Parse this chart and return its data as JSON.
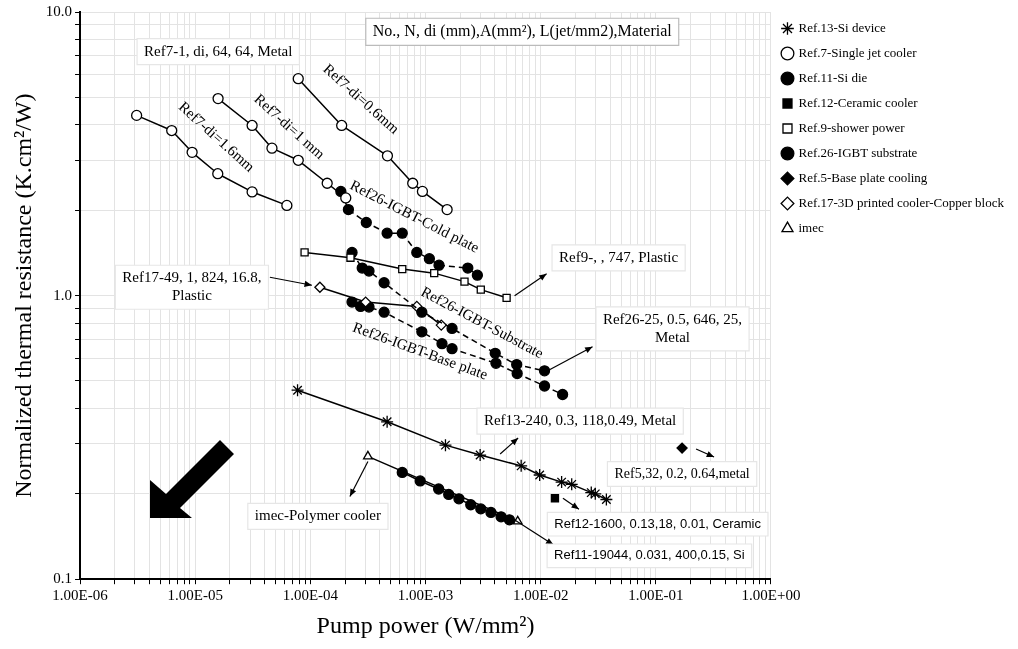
{
  "chart_data": {
    "type": "line",
    "xlabel": "Pump power (W/mm²)",
    "ylabel": "Normalized thermal resistance (K.cm²/W)",
    "log": "xy",
    "grid": true,
    "legend": "right",
    "xlim": [
      1e-06,
      1
    ],
    "ylim": [
      0.1,
      10
    ],
    "xticks": [
      {
        "value": 1e-06,
        "label": "1.00E-06"
      },
      {
        "value": 2e-06,
        "label": null
      },
      {
        "value": 3e-06,
        "label": null
      },
      {
        "value": 4e-06,
        "label": null
      },
      {
        "value": 5e-06,
        "label": null
      },
      {
        "value": 6e-06,
        "label": null
      },
      {
        "value": 7e-06,
        "label": null
      },
      {
        "value": 8e-06,
        "label": null
      },
      {
        "value": 9e-06,
        "label": null
      },
      {
        "value": 1e-05,
        "label": "1.00E-05"
      },
      {
        "value": 2e-05,
        "label": null
      },
      {
        "value": 3e-05,
        "label": null
      },
      {
        "value": 4e-05,
        "label": null
      },
      {
        "value": 5e-05,
        "label": null
      },
      {
        "value": 6e-05,
        "label": null
      },
      {
        "value": 7e-05,
        "label": null
      },
      {
        "value": 8e-05,
        "label": null
      },
      {
        "value": 9e-05,
        "label": null
      },
      {
        "value": 0.0001,
        "label": "1.00E-04"
      },
      {
        "value": 0.0002,
        "label": null
      },
      {
        "value": 0.0003,
        "label": null
      },
      {
        "value": 0.0004,
        "label": null
      },
      {
        "value": 0.0005,
        "label": null
      },
      {
        "value": 0.0006,
        "label": null
      },
      {
        "value": 0.0007,
        "label": null
      },
      {
        "value": 0.0008,
        "label": null
      },
      {
        "value": 0.0009,
        "label": null
      },
      {
        "value": 0.001,
        "label": "1.00E-03"
      },
      {
        "value": 0.002,
        "label": null
      },
      {
        "value": 0.003,
        "label": null
      },
      {
        "value": 0.004,
        "label": null
      },
      {
        "value": 0.005,
        "label": null
      },
      {
        "value": 0.006,
        "label": null
      },
      {
        "value": 0.007,
        "label": null
      },
      {
        "value": 0.008,
        "label": null
      },
      {
        "value": 0.009,
        "label": null
      },
      {
        "value": 0.01,
        "label": "1.00E-02"
      },
      {
        "value": 0.02,
        "label": null
      },
      {
        "value": 0.03,
        "label": null
      },
      {
        "value": 0.04,
        "label": null
      },
      {
        "value": 0.05,
        "label": null
      },
      {
        "value": 0.06,
        "label": null
      },
      {
        "value": 0.07,
        "label": null
      },
      {
        "value": 0.08,
        "label": null
      },
      {
        "value": 0.09,
        "label": null
      },
      {
        "value": 0.1,
        "label": "1.00E-01"
      },
      {
        "value": 0.2,
        "label": null
      },
      {
        "value": 0.3,
        "label": null
      },
      {
        "value": 0.4,
        "label": null
      },
      {
        "value": 0.5,
        "label": null
      },
      {
        "value": 0.6,
        "label": null
      },
      {
        "value": 0.7,
        "label": null
      },
      {
        "value": 0.8,
        "label": null
      },
      {
        "value": 0.9,
        "label": null
      },
      {
        "value": 1,
        "label": "1.00E+00"
      }
    ],
    "yticks": [
      {
        "value": 0.1,
        "label": "0.1"
      },
      {
        "value": 0.2,
        "label": null
      },
      {
        "value": 0.3,
        "label": null
      },
      {
        "value": 0.4,
        "label": null
      },
      {
        "value": 0.5,
        "label": null
      },
      {
        "value": 0.6,
        "label": null
      },
      {
        "value": 0.7,
        "label": null
      },
      {
        "value": 0.8,
        "label": null
      },
      {
        "value": 0.9,
        "label": null
      },
      {
        "value": 1,
        "label": "1.0"
      },
      {
        "value": 2,
        "label": null
      },
      {
        "value": 3,
        "label": null
      },
      {
        "value": 4,
        "label": null
      },
      {
        "value": 5,
        "label": null
      },
      {
        "value": 6,
        "label": null
      },
      {
        "value": 7,
        "label": null
      },
      {
        "value": 8,
        "label": null
      },
      {
        "value": 9,
        "label": null
      },
      {
        "value": 10,
        "label": "10.0"
      }
    ],
    "series": [
      {
        "name": "Ref.13-Si device",
        "type": "line",
        "marker": "cross",
        "line_style": "solid",
        "color": "#000000",
        "x": [
          7.74e-05,
          0.000464,
          0.00149,
          0.00298,
          0.00677,
          0.0098,
          0.0152,
          0.0186,
          0.0275,
          0.0298,
          0.0372
        ],
        "values": [
          0.464,
          0.359,
          0.297,
          0.274,
          0.251,
          0.233,
          0.22,
          0.216,
          0.202,
          0.2,
          0.191
        ]
      },
      {
        "name": "Ref.7-Single jet cooler",
        "type": "line",
        "marker": "circle",
        "line_style": "solid",
        "color": "#ffffff",
        "x": [
          3.1e-06,
          6.25e-06,
          9.4e-06,
          1.57e-05,
          3.12e-05,
          6.25e-05
        ],
        "values": [
          4.32,
          3.82,
          3.2,
          2.69,
          2.32,
          2.08
        ]
      },
      {
        "name": "Ref.11-Si die",
        "type": "line",
        "marker": "circle",
        "line_style": "solid",
        "color": "#000000",
        "x": [
          0.000628,
          0.000899,
          0.0013,
          0.00159,
          0.00195,
          0.00247,
          0.00302,
          0.0037,
          0.00453,
          0.00535
        ],
        "values": [
          0.238,
          0.222,
          0.208,
          0.199,
          0.192,
          0.183,
          0.177,
          0.172,
          0.166,
          0.162
        ]
      },
      {
        "name": "Ref.12-Ceramic cooler",
        "type": "scatter",
        "marker": "square",
        "color": "#000000",
        "x": [
          0.0133
        ],
        "values": [
          0.193
        ]
      },
      {
        "name": "Ref.9-shower power",
        "type": "line",
        "marker": "square",
        "line_style": "solid",
        "color": "#ffffff",
        "x": [
          8.91e-05,
          0.000223,
          0.000628,
          0.00119,
          0.00218,
          0.00302,
          0.00506
        ],
        "values": [
          1.42,
          1.36,
          1.24,
          1.2,
          1.12,
          1.05,
          0.982
        ]
      },
      {
        "name": "Ref.26-IGBT substrate",
        "type": "line",
        "marker": "circle",
        "line_style": "dashed",
        "color": "#000000",
        "x": [
          0.00023,
          0.000282,
          0.000323,
          0.000437,
          0.000929,
          0.0017,
          0.00403,
          0.00619,
          0.0108
        ],
        "values": [
          1.42,
          1.25,
          1.22,
          1.11,
          0.874,
          0.766,
          0.626,
          0.571,
          0.543
        ]
      },
      {
        "name": "Ref.5-Base plate cooling",
        "type": "scatter",
        "marker": "diamond",
        "color": "#000000",
        "x": [
          0.169
        ],
        "values": [
          0.29
        ]
      },
      {
        "name": "Ref.17-3D printed cooler-Copper block",
        "type": "line",
        "marker": "diamond",
        "line_style": "solid",
        "color": "#ffffff",
        "x": [
          0.000121,
          0.000302,
          0.00084,
          0.00137
        ],
        "values": [
          1.07,
          0.949,
          0.916,
          0.787
        ]
      },
      {
        "name": "imec",
        "type": "line",
        "marker": "triangle",
        "line_style": "solid",
        "color": "#ffffff",
        "x": [
          0.000316,
          0.00632
        ],
        "values": [
          0.271,
          0.16
        ]
      },
      {
        "type": "line",
        "marker": "circle",
        "line_style": "solid",
        "color": "#ffffff",
        "x": [
          1.58e-05,
          3.12e-05,
          4.64e-05,
          7.85e-05,
          0.00014,
          0.000203
        ],
        "values": [
          4.95,
          3.98,
          3.31,
          3.0,
          2.49,
          2.21
        ]
      },
      {
        "type": "line",
        "marker": "circle",
        "line_style": "solid",
        "color": "#ffffff",
        "x": [
          7.85e-05,
          0.000187,
          0.000467,
          0.000774,
          0.00094,
          0.00154
        ],
        "values": [
          5.82,
          3.98,
          3.11,
          2.49,
          2.33,
          2.01
        ]
      },
      {
        "type": "line",
        "marker": "circle",
        "line_style": "dashed",
        "color": "#000000",
        "x": [
          0.000184,
          0.000214,
          0.000306,
          0.000464,
          0.000628,
          0.00084,
          0.00108,
          0.00131,
          0.00233,
          0.00282
        ],
        "values": [
          2.33,
          2.01,
          1.81,
          1.66,
          1.66,
          1.42,
          1.35,
          1.28,
          1.25,
          1.18
        ]
      },
      {
        "type": "line",
        "marker": "circle",
        "line_style": "dashed",
        "color": "#000000",
        "x": [
          0.00023,
          0.000273,
          0.000323,
          0.000437,
          0.000929,
          0.00139,
          0.0017,
          0.00409,
          0.00625,
          0.0108,
          0.0155
        ],
        "values": [
          0.949,
          0.916,
          0.911,
          0.874,
          0.745,
          0.677,
          0.65,
          0.577,
          0.531,
          0.48,
          0.448
        ]
      }
    ],
    "annotations": [
      "No., N, di (mm),A(mm²), L(jet/mm2),Material",
      "Ref7-1, di, 64, 64, Metal",
      {
        "text": "Ref7-di=0.6mm",
        "x": 0.000187,
        "y": 3.98
      },
      {
        "text": "Ref7-di=1 mm",
        "x": 4.64e-05,
        "y": 3.31
      },
      {
        "text": "Ref7-di=1.6mm",
        "x": 9.4e-06,
        "y": 3.2
      },
      {
        "text": "Ref26-IGBT-Cold plate",
        "x": 0.000628,
        "y": 1.66
      },
      {
        "text": "Ref26-IGBT-Substrate",
        "x": 0.000929,
        "y": 0.874
      },
      {
        "text": "Ref26-IGBT-Base plate",
        "x": 0.00139,
        "y": 0.677
      },
      {
        "text": "Ref9-, , 747, Plastic",
        "x": 0.00506,
        "y": 0.982
      },
      {
        "text": "Ref17-49, 1, 824, 16.8, Plastic",
        "x": 0.000121,
        "y": 1.07
      },
      {
        "text": "Ref26-25, 0.5, 646, 25, Metal",
        "x": 0.0108,
        "y": 0.543
      },
      {
        "text": "Ref13-240, 0.3, 118,0.49, Metal",
        "x": 0.00298,
        "y": 0.274
      },
      {
        "text": "Ref5,32, 0.2, 0.64,metal",
        "x": 0.169,
        "y": 0.29
      },
      {
        "text": "Ref12-1600, 0.13,18, 0.01, Ceramic",
        "x": 0.0133,
        "y": 0.193
      },
      {
        "text": "Ref11-19044, 0.031, 400,0.15, Si",
        "x": 0.00535,
        "y": 0.162
      },
      {
        "text": "imec-Polymer cooler",
        "x": 0.000316,
        "y": 0.271
      }
    ]
  }
}
